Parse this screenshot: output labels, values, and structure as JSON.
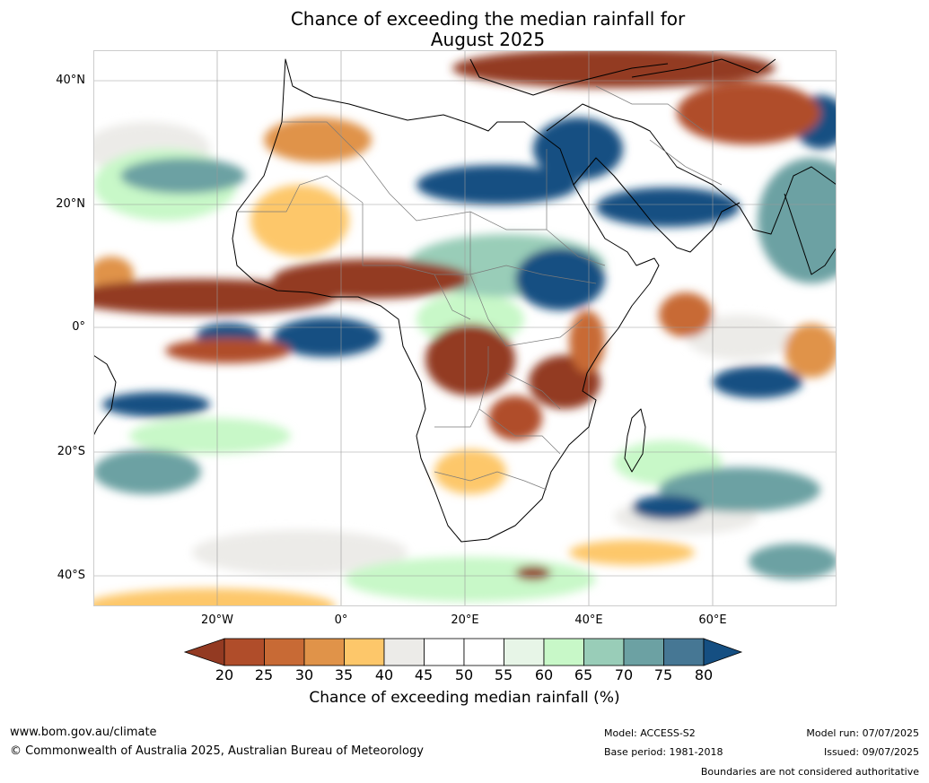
{
  "title_line1": "Chance of exceeding the median rainfall for",
  "title_line2": "August 2025",
  "latitude_labels": [
    "40°N",
    "20°N",
    "0°",
    "20°S",
    "40°S"
  ],
  "longitude_labels": [
    "20°W",
    "0°",
    "20°E",
    "40°E",
    "60°E"
  ],
  "colorbar": {
    "ticks": [
      "20",
      "25",
      "30",
      "35",
      "40",
      "45",
      "50",
      "55",
      "60",
      "65",
      "70",
      "75",
      "80"
    ],
    "label": "Chance of exceeding median rainfall (%)",
    "colors": [
      "#933a22",
      "#b04d2a",
      "#c86a35",
      "#e09349",
      "#fdc76a",
      "#ecebe8",
      "#ffffff",
      "#ffffff",
      "#e7f5e7",
      "#c8f8c8",
      "#99cdb8",
      "#6ca1a3",
      "#467794",
      "#154f82"
    ]
  },
  "footer": {
    "website": "www.bom.gov.au/climate",
    "copyright": "© Commonwealth of Australia 2025, Australian Bureau of Meteorology",
    "model": "Model: ACCESS-S2",
    "base_period": "Base period: 1981-2018",
    "model_run": "Model run: 07/07/2025",
    "issued": "Issued: 09/07/2025",
    "disclaimer": "Boundaries are not considered authoritative"
  }
}
